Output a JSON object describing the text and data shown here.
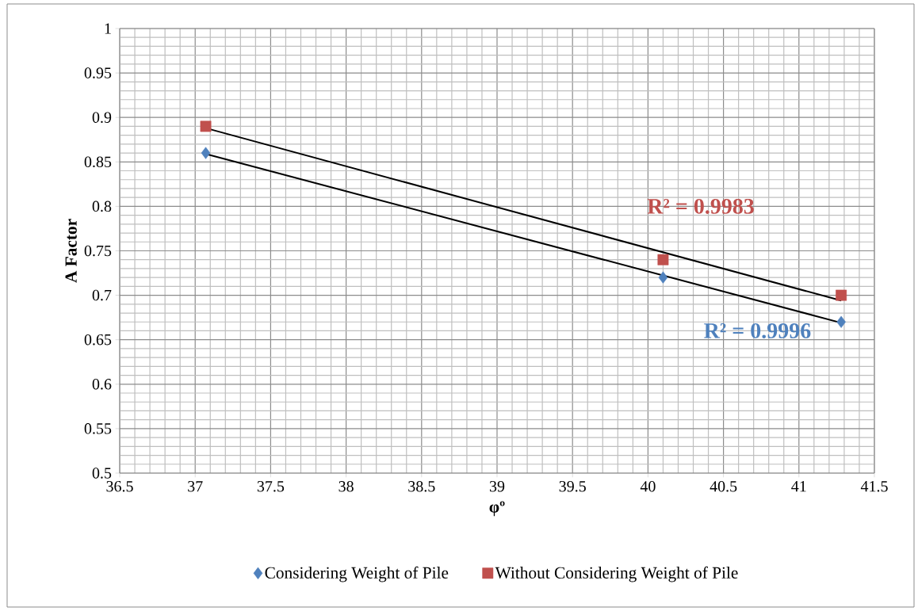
{
  "chart_data": {
    "type": "scatter",
    "xlabel": "φº",
    "ylabel": "A Factor",
    "xlim": [
      36.5,
      41.5
    ],
    "xticks": [
      36.5,
      37,
      37.5,
      38,
      38.5,
      39,
      39.5,
      40,
      40.5,
      41,
      41.5
    ],
    "ylim": [
      0.5,
      1
    ],
    "yticks": [
      0.5,
      0.55,
      0.6,
      0.65,
      0.7,
      0.75,
      0.8,
      0.85,
      0.9,
      0.95,
      1
    ],
    "grid": true,
    "legend": "bottom",
    "series": [
      {
        "name": "Considering Weight of Pile",
        "color": "#4f81bd",
        "marker": "diamond",
        "x": [
          37.07,
          40.1,
          41.28
        ],
        "values": [
          0.86,
          0.72,
          0.67
        ]
      },
      {
        "name": "Without Considering Weight of Pile",
        "color": "#c0504d",
        "marker": "square",
        "x": [
          37.07,
          40.1,
          41.28
        ],
        "values": [
          0.89,
          0.74,
          0.7
        ]
      },
      {
        "type": "line",
        "color": "#000000",
        "marker": "none",
        "x": [
          37.07,
          41.28
        ],
        "values": [
          0.859,
          0.669
        ]
      },
      {
        "type": "line",
        "color": "#000000",
        "marker": "none",
        "x": [
          37.07,
          41.28
        ],
        "values": [
          0.888,
          0.694
        ]
      }
    ],
    "annotations": [
      "R² = 0.9996",
      "R² = 0.9983"
    ]
  }
}
